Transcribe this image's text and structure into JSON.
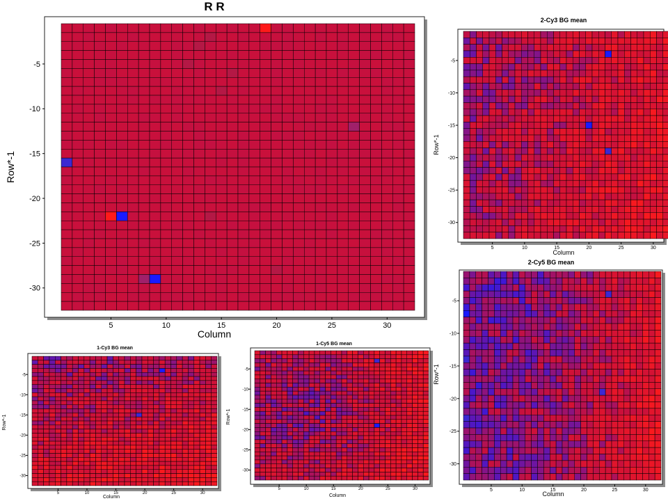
{
  "chart_data": [
    {
      "id": "rr",
      "type": "heatmap",
      "title": "R R",
      "xlabel": "Column",
      "ylabel": "Row*-1",
      "xlim": [
        0.5,
        32.5
      ],
      "ylim": [
        -32.5,
        -0.5
      ],
      "rows": 32,
      "cols": 32,
      "xticks": [
        5,
        10,
        15,
        20,
        25,
        30
      ],
      "yticks": [
        -5,
        -10,
        -15,
        -20,
        -25,
        -30
      ],
      "grid": false,
      "legend": "none",
      "base_color": "#c8103c",
      "low_color": "#1a1aff",
      "high_color": "#ff1a1a",
      "noise": 0.03,
      "trend": "none",
      "highlights": [
        {
          "row": 1,
          "col": 19,
          "color": "#ff1a1a"
        },
        {
          "row": 2,
          "col": 14,
          "color": "#b41845"
        },
        {
          "row": 3,
          "col": 13,
          "color": "#b41845"
        },
        {
          "row": 5,
          "col": 12,
          "color": "#b41845"
        },
        {
          "row": 6,
          "col": 16,
          "color": "#b41845"
        },
        {
          "row": 8,
          "col": 15,
          "color": "#b41845"
        },
        {
          "row": 12,
          "col": 27,
          "color": "#a0206a"
        },
        {
          "row": 16,
          "col": 1,
          "color": "#3c28d2"
        },
        {
          "row": 22,
          "col": 5,
          "color": "#ff1a1a"
        },
        {
          "row": 22,
          "col": 6,
          "color": "#1a1aff"
        },
        {
          "row": 22,
          "col": 14,
          "color": "#b41845"
        },
        {
          "row": 29,
          "col": 9,
          "color": "#1a1aff"
        },
        {
          "row": 29,
          "col": 8,
          "color": "#a0206a"
        },
        {
          "row": 28,
          "col": 20,
          "color": "#b41845"
        }
      ]
    },
    {
      "id": "cy3_2",
      "type": "heatmap",
      "title": "2-Cy3 BG mean",
      "xlabel": "Column",
      "ylabel": "Row*-1",
      "xlim": [
        0.5,
        32.5
      ],
      "ylim": [
        -32.5,
        -0.5
      ],
      "rows": 32,
      "cols": 32,
      "xticks": [
        5,
        10,
        15,
        20,
        25,
        30
      ],
      "yticks": [
        -5,
        -10,
        -15,
        -20,
        -25,
        -30
      ],
      "grid": false,
      "legend": "none",
      "base_color": "#c8103c",
      "low_color": "#1a1aff",
      "high_color": "#ff1a1a",
      "noise": 0.5,
      "trend": "right-red",
      "highlights": [
        {
          "row": 4,
          "col": 23,
          "color": "#1a1aff"
        },
        {
          "row": 15,
          "col": 20,
          "color": "#1a1aff"
        },
        {
          "row": 19,
          "col": 23,
          "color": "#3c28d2"
        }
      ]
    },
    {
      "id": "cy5_2",
      "type": "heatmap",
      "title": "2-Cy5 BG mean",
      "xlabel": "Column",
      "ylabel": "Row*-1",
      "xlim": [
        0.5,
        32.5
      ],
      "ylim": [
        -32.5,
        -0.5
      ],
      "rows": 32,
      "cols": 32,
      "xticks": [
        5,
        10,
        15,
        20,
        25,
        30
      ],
      "yticks": [
        -5,
        -10,
        -15,
        -20,
        -25,
        -30
      ],
      "grid": false,
      "legend": "none",
      "base_color": "#c8103c",
      "low_color": "#1a1aff",
      "high_color": "#ff1a1a",
      "noise": 0.45,
      "trend": "left-blue-right-red",
      "highlights": [
        {
          "row": 7,
          "col": 1,
          "color": "#1a1aff"
        },
        {
          "row": 14,
          "col": 1,
          "color": "#3c28d2"
        },
        {
          "row": 23,
          "col": 1,
          "color": "#3c28d2"
        },
        {
          "row": 19,
          "col": 23,
          "color": "#3c28d2"
        },
        {
          "row": 4,
          "col": 24,
          "color": "#3c28d2"
        }
      ]
    },
    {
      "id": "cy3_1",
      "type": "heatmap",
      "title": "1-Cy3 BG mean",
      "xlabel": "Column",
      "ylabel": "Row*-1",
      "xlim": [
        0.5,
        32.5
      ],
      "ylim": [
        -32.5,
        -0.5
      ],
      "rows": 32,
      "cols": 32,
      "xticks": [
        5,
        10,
        15,
        20,
        25,
        30
      ],
      "yticks": [
        -5,
        -10,
        -15,
        -20,
        -25,
        -30
      ],
      "grid": false,
      "legend": "none",
      "base_color": "#c8103c",
      "low_color": "#1a1aff",
      "high_color": "#ff1a1a",
      "noise": 0.5,
      "trend": "bottom-red",
      "highlights": [
        {
          "row": 4,
          "col": 23,
          "color": "#1a1aff"
        },
        {
          "row": 15,
          "col": 19,
          "color": "#3c28d2"
        }
      ]
    },
    {
      "id": "cy5_1",
      "type": "heatmap",
      "title": "1-Cy5 BG mean",
      "xlabel": "Column",
      "ylabel": "Row*-1",
      "xlim": [
        0.5,
        32.5
      ],
      "ylim": [
        -32.5,
        -0.5
      ],
      "rows": 32,
      "cols": 32,
      "xticks": [
        5,
        10,
        15,
        20,
        25,
        30
      ],
      "yticks": [
        -5,
        -10,
        -15,
        -20,
        -25,
        -30
      ],
      "grid": false,
      "legend": "none",
      "base_color": "#c8103c",
      "low_color": "#1a1aff",
      "high_color": "#ff1a1a",
      "noise": 0.5,
      "trend": "blue-center-red-right",
      "highlights": [
        {
          "row": 3,
          "col": 23,
          "color": "#3c28d2"
        },
        {
          "row": 19,
          "col": 23,
          "color": "#1a1aff"
        }
      ]
    }
  ]
}
